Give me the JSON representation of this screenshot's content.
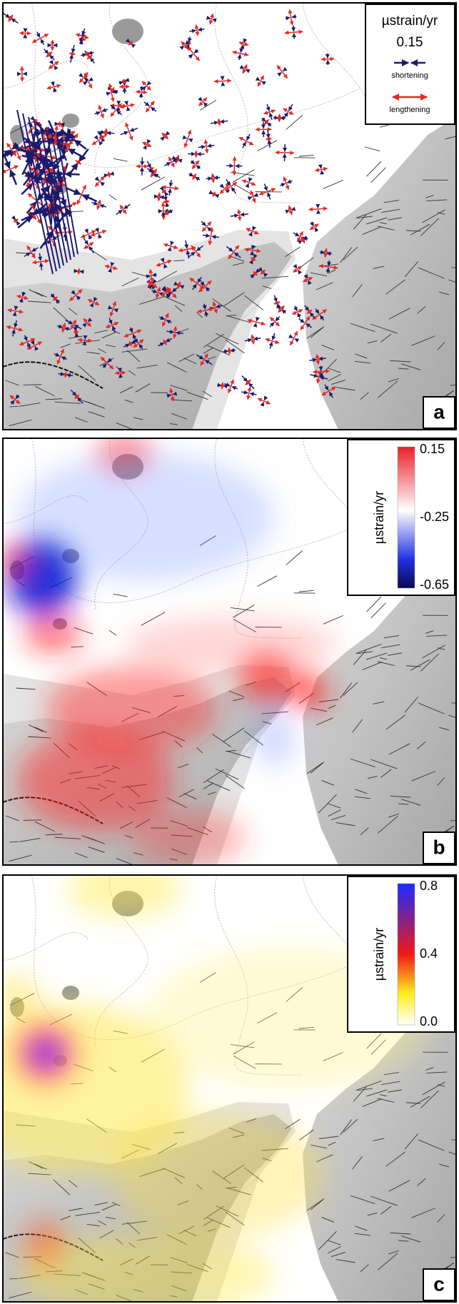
{
  "panels": [
    {
      "label": "a",
      "legend": {
        "title": "µstrain/yr",
        "scale": "0.15",
        "shortening": "shortening",
        "lengthening": "lengthening"
      }
    },
    {
      "label": "b",
      "colorbar": {
        "title": "µstrain/yr",
        "ticks": [
          "0.15",
          "-0.25",
          "-0.65"
        ]
      }
    },
    {
      "label": "c",
      "colorbar": {
        "title": "µstrain/yr",
        "ticks": [
          "0.8",
          "0.4",
          "0.0"
        ]
      }
    }
  ]
}
